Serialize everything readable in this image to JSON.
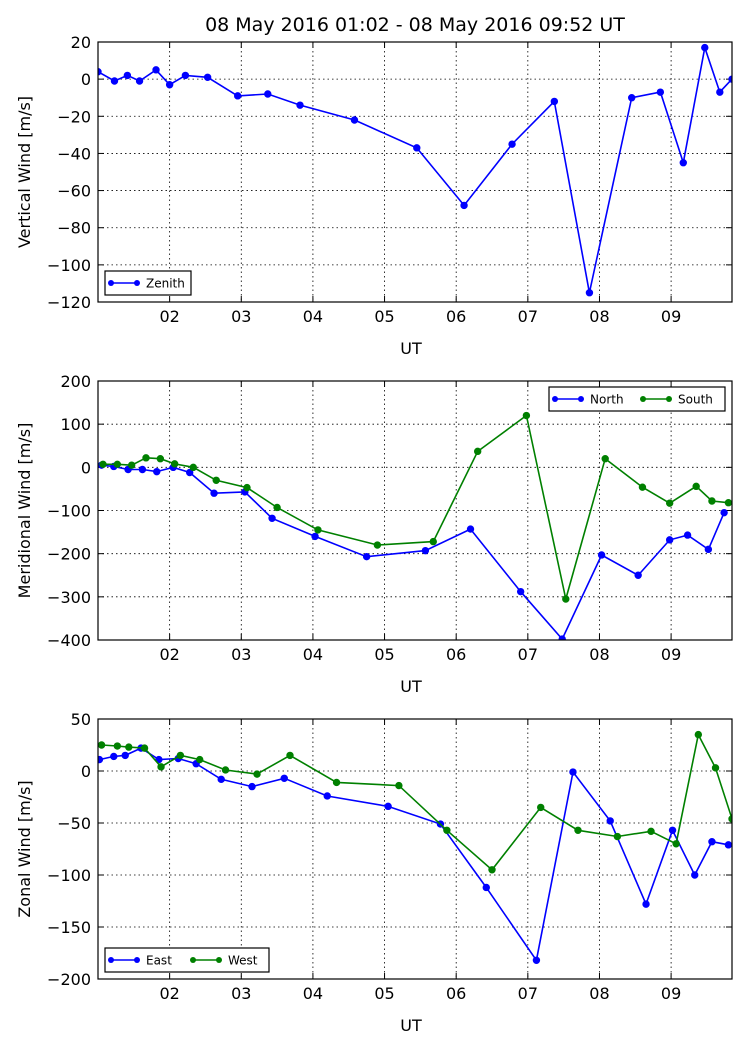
{
  "figure": {
    "title": "08 May 2016 01:02  -  08 May 2016 09:52 UT"
  },
  "colors": {
    "blue": "#0000ff",
    "green": "#008000",
    "grid": "#000000",
    "background": "#ffffff"
  },
  "chart_data": [
    {
      "type": "line",
      "id": "vertical",
      "title": "",
      "xlabel": "UT",
      "ylabel": "Vertical Wind [m/s]",
      "xlim": [
        1.0,
        9.85
      ],
      "ylim": [
        -120,
        20
      ],
      "xticks": [
        2,
        3,
        4,
        5,
        6,
        7,
        8,
        9
      ],
      "xtick_labels": [
        "02",
        "03",
        "04",
        "05",
        "06",
        "07",
        "08",
        "09"
      ],
      "yticks": [
        20,
        0,
        -20,
        -40,
        -60,
        -80,
        -100,
        -120
      ],
      "ytick_labels": [
        "20",
        "0",
        "−20",
        "−40",
        "−60",
        "−80",
        "−100",
        "−120"
      ],
      "grid": true,
      "legend_position": "bottom-left",
      "legend_columns": 1,
      "series": [
        {
          "name": "Zenith",
          "color": "blue",
          "x": [
            1.0,
            1.23,
            1.41,
            1.58,
            1.81,
            2.0,
            2.22,
            2.53,
            2.95,
            3.37,
            3.82,
            4.58,
            5.45,
            6.11,
            6.78,
            7.37,
            7.86,
            8.45,
            8.85,
            9.17,
            9.47,
            9.68,
            9.85
          ],
          "y": [
            4,
            -1,
            2,
            -1,
            5,
            -3,
            2,
            1,
            -9,
            -8,
            -14,
            -22,
            -37,
            -68,
            -35,
            -12,
            -115,
            -10,
            -7,
            -45,
            17,
            -7,
            0
          ]
        }
      ]
    },
    {
      "type": "line",
      "id": "meridional",
      "title": "",
      "xlabel": "UT",
      "ylabel": "Meridional Wind [m/s]",
      "xlim": [
        1.0,
        9.85
      ],
      "ylim": [
        -400,
        200
      ],
      "xticks": [
        2,
        3,
        4,
        5,
        6,
        7,
        8,
        9
      ],
      "xtick_labels": [
        "02",
        "03",
        "04",
        "05",
        "06",
        "07",
        "08",
        "09"
      ],
      "yticks": [
        200,
        100,
        0,
        -100,
        -200,
        -300,
        -400
      ],
      "ytick_labels": [
        "200",
        "100",
        "0",
        "−100",
        "−200",
        "−300",
        "−400"
      ],
      "grid": true,
      "legend_position": "top-right",
      "legend_columns": 2,
      "series": [
        {
          "name": "North",
          "color": "blue",
          "x": [
            1.05,
            1.22,
            1.42,
            1.62,
            1.82,
            2.05,
            2.28,
            2.62,
            3.05,
            3.43,
            4.03,
            4.75,
            5.57,
            6.2,
            6.9,
            7.48,
            8.03,
            8.54,
            8.98,
            9.23,
            9.52,
            9.74
          ],
          "y": [
            5,
            2,
            -5,
            -5,
            -10,
            0,
            -12,
            -60,
            -57,
            -118,
            -160,
            -207,
            -193,
            -143,
            -288,
            -398,
            -203,
            -250,
            -168,
            -157,
            -190,
            -105
          ]
        },
        {
          "name": "South",
          "color": "green",
          "x": [
            1.07,
            1.27,
            1.47,
            1.67,
            1.87,
            2.07,
            2.33,
            2.65,
            3.08,
            3.5,
            4.07,
            4.9,
            5.68,
            6.3,
            6.98,
            7.53,
            8.08,
            8.6,
            8.98,
            9.35,
            9.57,
            9.8
          ],
          "y": [
            7,
            7,
            5,
            22,
            20,
            8,
            0,
            -30,
            -47,
            -93,
            -145,
            -180,
            -172,
            37,
            120,
            -305,
            20,
            -46,
            -83,
            -44,
            -78,
            -82
          ]
        }
      ]
    },
    {
      "type": "line",
      "id": "zonal",
      "title": "",
      "xlabel": "UT",
      "ylabel": "Zonal Wind [m/s]",
      "xlim": [
        1.0,
        9.85
      ],
      "ylim": [
        -200,
        50
      ],
      "xticks": [
        2,
        3,
        4,
        5,
        6,
        7,
        8,
        9
      ],
      "xtick_labels": [
        "02",
        "03",
        "04",
        "05",
        "06",
        "07",
        "08",
        "09"
      ],
      "yticks": [
        50,
        0,
        -50,
        -100,
        -150,
        -200
      ],
      "ytick_labels": [
        "50",
        "0",
        "−50",
        "−100",
        "−150",
        "−200"
      ],
      "grid": true,
      "legend_position": "bottom-left",
      "legend_columns": 2,
      "series": [
        {
          "name": "East",
          "color": "blue",
          "x": [
            1.02,
            1.22,
            1.38,
            1.6,
            1.85,
            2.12,
            2.37,
            2.72,
            3.15,
            3.6,
            4.2,
            5.05,
            5.78,
            6.42,
            7.12,
            7.63,
            8.15,
            8.65,
            9.02,
            9.33,
            9.57,
            9.8
          ],
          "y": [
            11,
            14,
            15,
            22,
            11,
            12,
            7,
            -8,
            -15,
            -7,
            -24,
            -34,
            -51,
            -112,
            -182,
            -1,
            -48,
            -128,
            -57,
            -100,
            -68,
            -71
          ]
        },
        {
          "name": "West",
          "color": "green",
          "x": [
            1.05,
            1.27,
            1.43,
            1.65,
            1.88,
            2.15,
            2.42,
            2.78,
            3.22,
            3.68,
            4.33,
            5.2,
            5.87,
            6.5,
            7.18,
            7.7,
            8.25,
            8.72,
            9.07,
            9.38,
            9.62,
            9.85
          ],
          "y": [
            25,
            24,
            23,
            22,
            4,
            15,
            11,
            1,
            -3,
            15,
            -11,
            -14,
            -57,
            -95,
            -35,
            -57,
            -63,
            -58,
            -70,
            35,
            3,
            -46
          ]
        }
      ]
    }
  ]
}
